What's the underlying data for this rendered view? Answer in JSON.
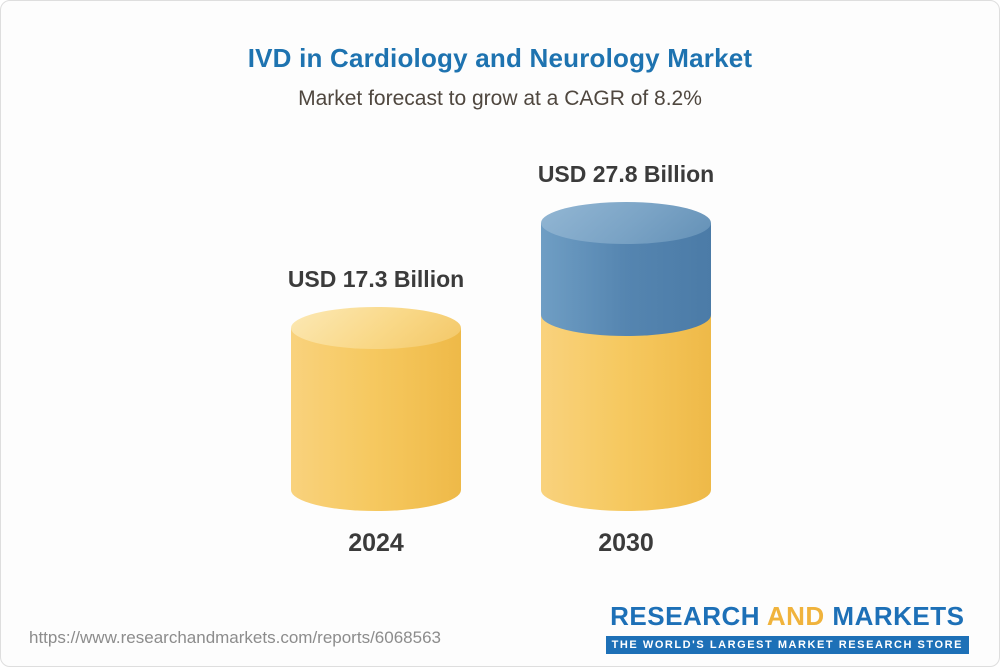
{
  "title": "IVD in Cardiology and Neurology Market",
  "subtitle": "Market forecast to grow at a CAGR of 8.2%",
  "chart_data": {
    "type": "bar",
    "variant": "3d-cylinder",
    "title": "IVD in Cardiology and Neurology Market",
    "subtitle": "Market forecast to grow at a CAGR of 8.2%",
    "cagr_percent": 8.2,
    "unit": "USD Billion",
    "categories": [
      "2024",
      "2030"
    ],
    "values": [
      17.3,
      27.8
    ],
    "value_labels": [
      "USD 17.3 Billion",
      "USD 27.8 Billion"
    ],
    "bars": [
      {
        "category": "2024",
        "value": 17.3,
        "segments": [
          {
            "name": "base",
            "color": "#f5c55f"
          }
        ]
      },
      {
        "category": "2030",
        "value": 27.8,
        "segments": [
          {
            "name": "base",
            "color": "#f5c55f"
          },
          {
            "name": "growth",
            "color": "#5585b0"
          }
        ]
      }
    ],
    "legend": "none",
    "grid": false,
    "axes": "none"
  },
  "footer": {
    "url": "https://www.researchandmarkets.com/reports/6068563",
    "logo": {
      "word1": "RESEARCH",
      "word2": "AND",
      "word3": "MARKETS",
      "tagline": "THE WORLD'S LARGEST MARKET RESEARCH STORE"
    }
  },
  "colors": {
    "title": "#1e73b0",
    "subtitle": "#4f473f",
    "labels": "#3b3b3b",
    "url_text": "#8c8c8c",
    "yellow_body": "#f5c55f",
    "yellow_cap": "#f9dd96",
    "blue_body": "#5585b0",
    "blue_cap": "#7fa6c6",
    "logo_blue": "#1d70b7",
    "logo_yellow": "#f0b33c"
  }
}
